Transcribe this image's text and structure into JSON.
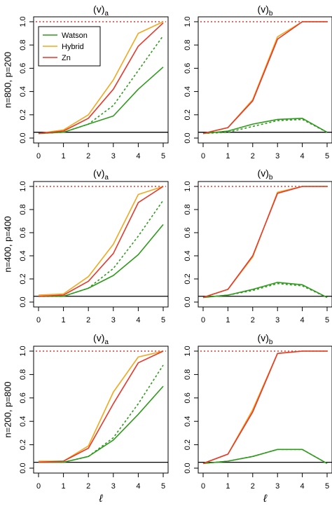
{
  "figure": {
    "xlabel": "ℓ"
  },
  "legend": {
    "placement": "top-left of first panel",
    "entries": [
      {
        "label": "Watson",
        "color": "#2e9a1c"
      },
      {
        "label": "Hybrid",
        "color": "#f2a81d"
      },
      {
        "label": "Zn",
        "color": "#e8372a"
      }
    ]
  },
  "colors": {
    "watson": "#2e9a1c",
    "hybrid": "#f2a81d",
    "zn": "#e8372a",
    "reference": "#000000"
  },
  "chart_data": [
    {
      "type": "line",
      "row": 0,
      "col": 0,
      "title_main": "(v)",
      "title_sub": "a",
      "ylabel": "n=800,  p=200",
      "xlabel": "",
      "x": [
        0,
        1,
        2,
        3,
        4,
        5
      ],
      "xlim": [
        0,
        5
      ],
      "ylim": [
        0,
        1
      ],
      "xticks": [
        "0",
        "1",
        "2",
        "3",
        "4",
        "5"
      ],
      "yticks": [
        "0.0",
        "0.2",
        "0.4",
        "0.6",
        "0.8",
        "1.0"
      ],
      "hline_solid": 0.05,
      "hline_dotted": 1.0,
      "series": [
        {
          "name": "Watson",
          "color": "#2e9a1c",
          "dash": false,
          "values": [
            0.04,
            0.05,
            0.12,
            0.19,
            0.42,
            0.61
          ]
        },
        {
          "name": "",
          "color": "#2e9a1c",
          "dash": true,
          "values": [
            0.04,
            0.05,
            0.12,
            0.28,
            0.58,
            0.88
          ]
        },
        {
          "name": "Hybrid",
          "color": "#f2a81d",
          "dash": false,
          "values": [
            0.04,
            0.07,
            0.2,
            0.5,
            0.9,
            1.0
          ]
        },
        {
          "name": "Zn",
          "color": "#e8372a",
          "dash": false,
          "values": [
            0.04,
            0.06,
            0.17,
            0.42,
            0.79,
            0.99
          ]
        }
      ]
    },
    {
      "type": "line",
      "row": 0,
      "col": 1,
      "title_main": "(v)",
      "title_sub": "b",
      "ylabel": "",
      "xlabel": "",
      "x": [
        0,
        1,
        2,
        3,
        4,
        5
      ],
      "xlim": [
        0,
        5
      ],
      "ylim": [
        0,
        1
      ],
      "xticks": [
        "0",
        "1",
        "2",
        "3",
        "4",
        "5"
      ],
      "yticks": [
        "0.0",
        "0.2",
        "0.4",
        "0.6",
        "0.8",
        "1.0"
      ],
      "hline_solid": 0.05,
      "hline_dotted": 1.0,
      "series": [
        {
          "name": "Watson",
          "color": "#2e9a1c",
          "dash": false,
          "values": [
            0.04,
            0.06,
            0.12,
            0.16,
            0.17,
            0.05
          ]
        },
        {
          "name": "",
          "color": "#2e9a1c",
          "dash": true,
          "values": [
            0.04,
            0.05,
            0.1,
            0.15,
            0.16,
            0.05
          ]
        },
        {
          "name": "Hybrid",
          "color": "#f2a81d",
          "dash": false,
          "values": [
            0.04,
            0.09,
            0.33,
            0.87,
            1.0,
            1.0
          ]
        },
        {
          "name": "Zn",
          "color": "#e8372a",
          "dash": false,
          "values": [
            0.04,
            0.09,
            0.32,
            0.85,
            1.0,
            1.0
          ]
        }
      ]
    },
    {
      "type": "line",
      "row": 1,
      "col": 0,
      "title_main": "(v)",
      "title_sub": "a",
      "ylabel": "n=400,  p=400",
      "xlabel": "",
      "x": [
        0,
        1,
        2,
        3,
        4,
        5
      ],
      "xlim": [
        0,
        5
      ],
      "ylim": [
        0,
        1
      ],
      "xticks": [
        "0",
        "1",
        "2",
        "3",
        "4",
        "5"
      ],
      "yticks": [
        "0.0",
        "0.2",
        "0.4",
        "0.6",
        "0.8",
        "1.0"
      ],
      "hline_solid": 0.05,
      "hline_dotted": 1.0,
      "series": [
        {
          "name": "Watson",
          "color": "#2e9a1c",
          "dash": false,
          "values": [
            0.05,
            0.05,
            0.12,
            0.23,
            0.41,
            0.67
          ]
        },
        {
          "name": "",
          "color": "#2e9a1c",
          "dash": true,
          "values": [
            0.05,
            0.05,
            0.12,
            0.29,
            0.57,
            0.88
          ]
        },
        {
          "name": "Hybrid",
          "color": "#f2a81d",
          "dash": false,
          "values": [
            0.06,
            0.07,
            0.22,
            0.5,
            0.93,
            1.0
          ]
        },
        {
          "name": "Zn",
          "color": "#e8372a",
          "dash": false,
          "values": [
            0.05,
            0.06,
            0.18,
            0.42,
            0.86,
            1.0
          ]
        }
      ]
    },
    {
      "type": "line",
      "row": 1,
      "col": 1,
      "title_main": "(v)",
      "title_sub": "b",
      "ylabel": "",
      "xlabel": "",
      "x": [
        0,
        1,
        2,
        3,
        4,
        5
      ],
      "xlim": [
        0,
        5
      ],
      "ylim": [
        0,
        1
      ],
      "xticks": [
        "0",
        "1",
        "2",
        "3",
        "4",
        "5"
      ],
      "yticks": [
        "0.0",
        "0.2",
        "0.4",
        "0.6",
        "0.8",
        "1.0"
      ],
      "hline_solid": 0.05,
      "hline_dotted": 1.0,
      "series": [
        {
          "name": "Watson",
          "color": "#2e9a1c",
          "dash": false,
          "values": [
            0.04,
            0.06,
            0.11,
            0.17,
            0.15,
            0.04
          ]
        },
        {
          "name": "",
          "color": "#2e9a1c",
          "dash": true,
          "values": [
            0.04,
            0.06,
            0.1,
            0.16,
            0.14,
            0.04
          ]
        },
        {
          "name": "Hybrid",
          "color": "#f2a81d",
          "dash": false,
          "values": [
            0.04,
            0.11,
            0.39,
            0.95,
            1.0,
            1.0
          ]
        },
        {
          "name": "Zn",
          "color": "#e8372a",
          "dash": false,
          "values": [
            0.04,
            0.11,
            0.4,
            0.94,
            1.0,
            1.0
          ]
        }
      ]
    },
    {
      "type": "line",
      "row": 2,
      "col": 0,
      "title_main": "(v)",
      "title_sub": "a",
      "ylabel": "n=200,  p=800",
      "xlabel": "ℓ",
      "x": [
        0,
        1,
        2,
        3,
        4,
        5
      ],
      "xlim": [
        0,
        5
      ],
      "ylim": [
        0,
        1
      ],
      "xticks": [
        "0",
        "1",
        "2",
        "3",
        "4",
        "5"
      ],
      "yticks": [
        "0.0",
        "0.2",
        "0.4",
        "0.6",
        "0.8",
        "1.0"
      ],
      "hline_solid": 0.05,
      "hline_dotted": 1.0,
      "series": [
        {
          "name": "Watson",
          "color": "#2e9a1c",
          "dash": false,
          "values": [
            0.05,
            0.05,
            0.1,
            0.24,
            0.46,
            0.7
          ]
        },
        {
          "name": "",
          "color": "#2e9a1c",
          "dash": true,
          "values": [
            0.05,
            0.05,
            0.1,
            0.26,
            0.55,
            0.88
          ]
        },
        {
          "name": "Hybrid",
          "color": "#f2a81d",
          "dash": false,
          "values": [
            0.06,
            0.06,
            0.19,
            0.65,
            0.95,
            1.0
          ]
        },
        {
          "name": "Zn",
          "color": "#e8372a",
          "dash": false,
          "values": [
            0.05,
            0.06,
            0.17,
            0.55,
            0.9,
            1.0
          ]
        }
      ]
    },
    {
      "type": "line",
      "row": 2,
      "col": 1,
      "title_main": "(v)",
      "title_sub": "b",
      "ylabel": "",
      "xlabel": "ℓ",
      "x": [
        0,
        1,
        2,
        3,
        4,
        5
      ],
      "xlim": [
        0,
        5
      ],
      "ylim": [
        0,
        1
      ],
      "xticks": [
        "0",
        "1",
        "2",
        "3",
        "4",
        "5"
      ],
      "yticks": [
        "0.0",
        "0.2",
        "0.4",
        "0.6",
        "0.8",
        "1.0"
      ],
      "hline_solid": 0.05,
      "hline_dotted": 1.0,
      "series": [
        {
          "name": "Watson",
          "color": "#2e9a1c",
          "dash": false,
          "values": [
            0.04,
            0.06,
            0.1,
            0.16,
            0.16,
            0.04
          ]
        },
        {
          "name": "",
          "color": "#2e9a1c",
          "dash": true,
          "values": [
            0.04,
            0.06,
            0.1,
            0.16,
            0.16,
            0.04
          ]
        },
        {
          "name": "Hybrid",
          "color": "#f2a81d",
          "dash": false,
          "values": [
            0.04,
            0.12,
            0.5,
            0.98,
            1.0,
            1.0
          ]
        },
        {
          "name": "Zn",
          "color": "#e8372a",
          "dash": false,
          "values": [
            0.04,
            0.12,
            0.48,
            0.98,
            1.0,
            1.0
          ]
        }
      ]
    }
  ]
}
